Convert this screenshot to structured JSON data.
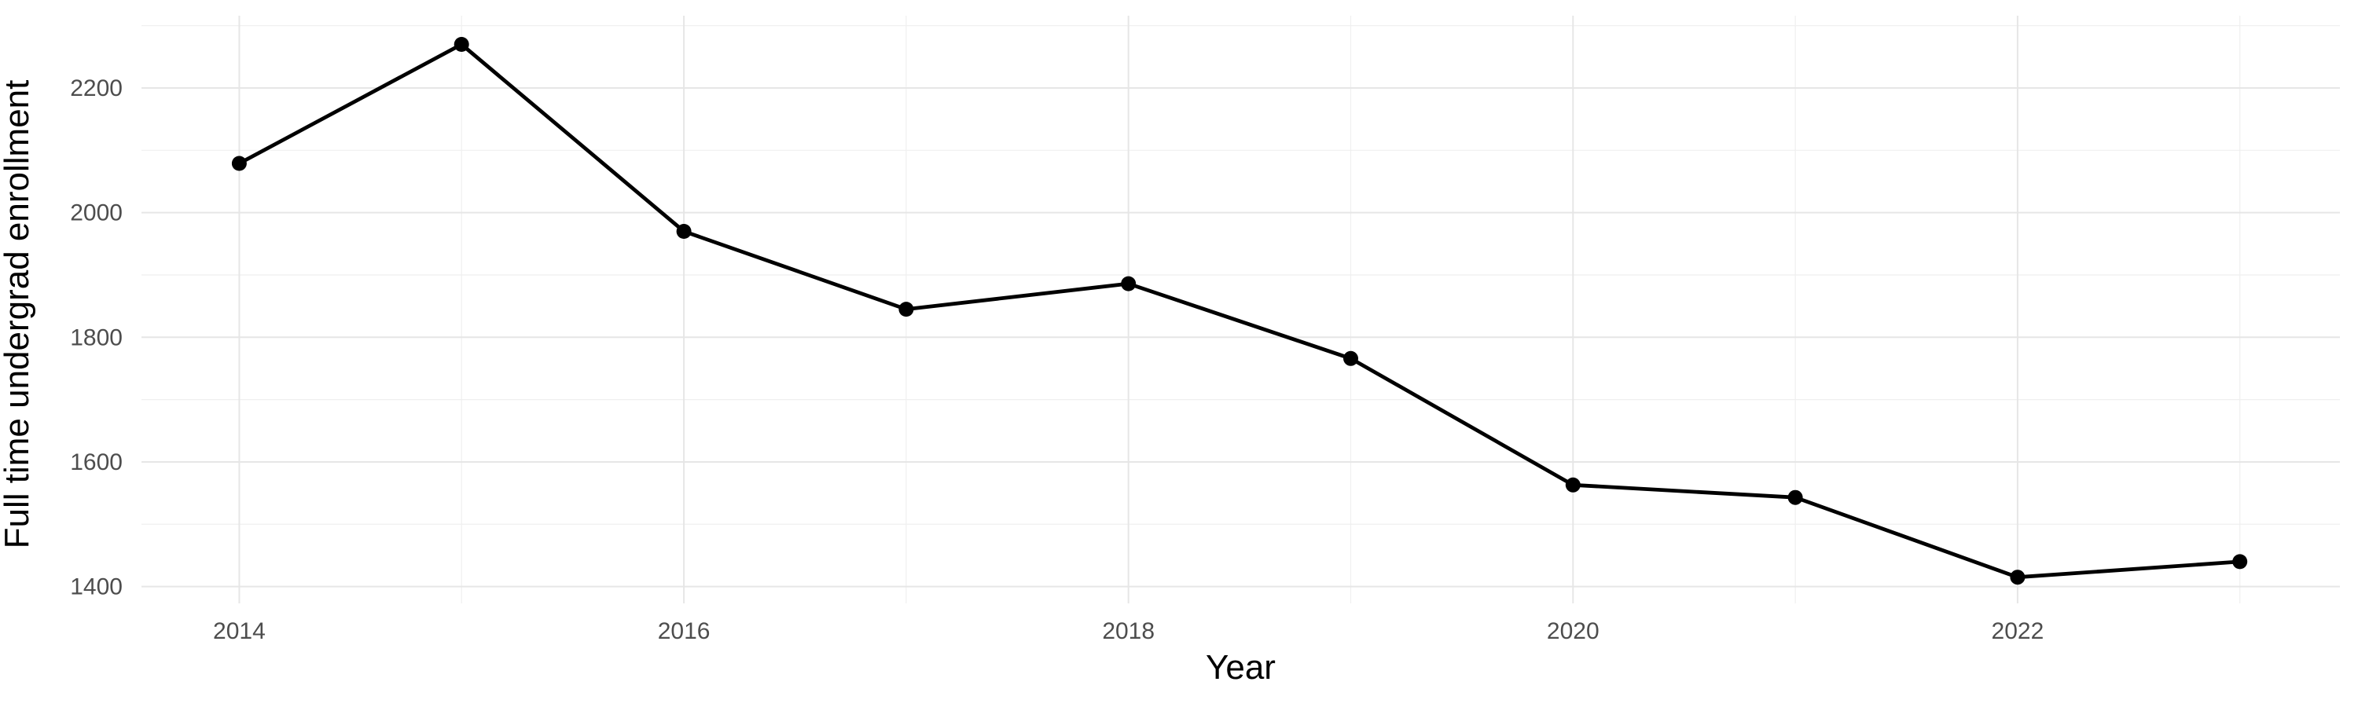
{
  "chart_data": {
    "type": "line",
    "title": "",
    "xlabel": "Year",
    "ylabel": "Full time undergrad enrollment",
    "x": [
      2014,
      2015,
      2016,
      2017,
      2018,
      2019,
      2020,
      2021,
      2022,
      2023
    ],
    "series": [
      {
        "name": "Full time undergrad enrollment",
        "values": [
          2079,
          2270,
          1970,
          1845,
          1886,
          1766,
          1563,
          1543,
          1415,
          1440
        ]
      }
    ],
    "x_ticks_major": [
      2014,
      2016,
      2018,
      2020,
      2022
    ],
    "x_tick_labels": [
      "2014",
      "2016",
      "2018",
      "2020",
      "2022"
    ],
    "x_ticks_minor": [
      2015,
      2017,
      2019,
      2021,
      2023
    ],
    "y_ticks_major": [
      1400,
      1600,
      1800,
      2000,
      2200
    ],
    "y_tick_labels": [
      "1400",
      "1600",
      "1800",
      "2000",
      "2200"
    ],
    "y_ticks_minor": [
      1500,
      1700,
      1900,
      2100,
      2300
    ],
    "xlim": [
      2013.56,
      2023.45
    ],
    "ylim": [
      1373,
      2316
    ],
    "grid": "on",
    "legend": "none",
    "colors": {
      "background": "#ffffff",
      "line": "#000000",
      "point": "#000000",
      "grid_major": "#e6e6e6",
      "grid_minor": "#efefef",
      "tick_label": "#4d4d4d",
      "axis_title": "#000000"
    }
  }
}
